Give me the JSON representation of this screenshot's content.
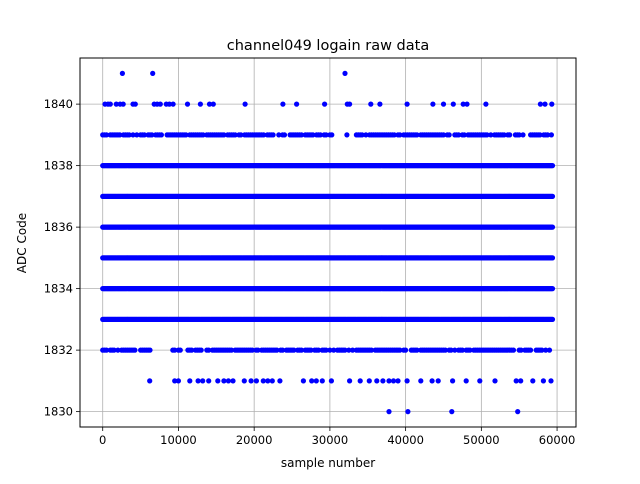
{
  "chart_data": {
    "type": "scatter",
    "title": "channel049 logain raw data",
    "xlabel": "sample number",
    "ylabel": "ADC Code",
    "xlim": [
      -3000,
      62500
    ],
    "ylim": [
      1829.5,
      1841.5
    ],
    "grid": true,
    "x_ticks": [
      0,
      10000,
      20000,
      30000,
      40000,
      50000,
      60000
    ],
    "y_ticks": [
      1830,
      1832,
      1834,
      1836,
      1838,
      1840
    ],
    "x_tick_labels": [
      "0",
      "10000",
      "20000",
      "30000",
      "40000",
      "50000",
      "60000"
    ],
    "y_tick_labels": [
      "1830",
      "1832",
      "1834",
      "1836",
      "1838",
      "1840"
    ],
    "sample_range": [
      0,
      59400
    ],
    "marker_color": "#0000ff",
    "levels": [
      {
        "code": 1830,
        "x": [
          37800,
          40300,
          46100,
          54800
        ]
      },
      {
        "code": 1831,
        "x": [
          6200,
          9500,
          10000,
          11500,
          12600,
          13200,
          14000,
          15200,
          16000,
          16600,
          17200,
          18700,
          19600,
          20300,
          21200,
          21800,
          22400,
          23400,
          26500,
          27600,
          28200,
          29000,
          30200,
          32600,
          34000,
          35200,
          36200,
          37000,
          37800,
          38400,
          39000,
          40200,
          42000,
          43500,
          44300,
          46200,
          48000,
          49800,
          51800,
          54600,
          55200,
          56800,
          58200,
          59200
        ]
      },
      {
        "code": 1832,
        "density": "dense",
        "x_range": [
          0,
          59400
        ],
        "gaps": [
          [
            6800,
            9000
          ],
          [
            10500,
            11000
          ]
        ]
      },
      {
        "code": 1833,
        "density": "continuous",
        "x_range": [
          0,
          59400
        ]
      },
      {
        "code": 1834,
        "density": "continuous",
        "x_range": [
          0,
          59400
        ]
      },
      {
        "code": 1835,
        "density": "continuous",
        "x_range": [
          0,
          59400
        ]
      },
      {
        "code": 1836,
        "density": "continuous",
        "x_range": [
          0,
          59400
        ]
      },
      {
        "code": 1837,
        "density": "continuous",
        "x_range": [
          0,
          59400
        ]
      },
      {
        "code": 1838,
        "density": "continuous",
        "x_range": [
          0,
          59400
        ]
      },
      {
        "code": 1839,
        "density": "dense",
        "x_range": [
          0,
          59400
        ],
        "gaps": [
          [
            30500,
            32000
          ],
          [
            32400,
            33300
          ]
        ]
      },
      {
        "code": 1840,
        "x": [
          300,
          700,
          1000,
          1800,
          2300,
          2700,
          4000,
          4300,
          6800,
          7200,
          7600,
          8400,
          8800,
          9300,
          11200,
          12900,
          14100,
          14600,
          18800,
          23800,
          25600,
          29300,
          32300,
          32600,
          35400,
          36600,
          40200,
          43600,
          45000,
          46300,
          47600,
          48100,
          50600,
          57800,
          58400,
          59300
        ]
      },
      {
        "code": 1841,
        "x": [
          2600,
          6600,
          32000
        ]
      }
    ]
  }
}
